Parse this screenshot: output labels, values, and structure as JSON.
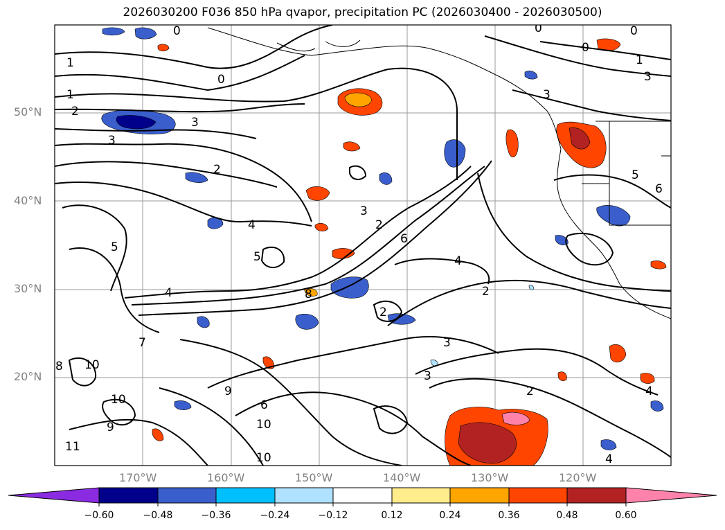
{
  "title": "2026030200 F036 850 hPa qvapor, precipitation PC (2026030400 - 2026030500)",
  "lat_labels": [
    "50°N",
    "40°N",
    "30°N",
    "20°N"
  ],
  "lon_labels": [
    "170°W",
    "160°W",
    "150°W",
    "140°W",
    "130°W",
    "120°W"
  ],
  "colorbar": {
    "ticks": [
      "−0.60",
      "−0.48",
      "−0.36",
      "−0.24",
      "−0.12",
      "0.12",
      "0.24",
      "0.36",
      "0.48",
      "0.60"
    ],
    "colors": [
      "#8a2be2",
      "#00008b",
      "#3a5fcd",
      "#00bfff",
      "#b0e2ff",
      "#ffffff",
      "#ffec8b",
      "#ffa500",
      "#ff4500",
      "#b22222",
      "#ff82ab"
    ]
  },
  "contour_labels": [
    "0",
    "0",
    "0",
    "0",
    "0",
    "1",
    "1",
    "1",
    "2",
    "2",
    "2",
    "2",
    "2",
    "2",
    "3",
    "3",
    "3",
    "3",
    "3",
    "3",
    "3",
    "4",
    "4",
    "4",
    "4",
    "4",
    "5",
    "5",
    "5",
    "6",
    "6",
    "6",
    "7",
    "8",
    "8",
    "9",
    "9",
    "10",
    "10",
    "10",
    "10",
    "11"
  ]
}
